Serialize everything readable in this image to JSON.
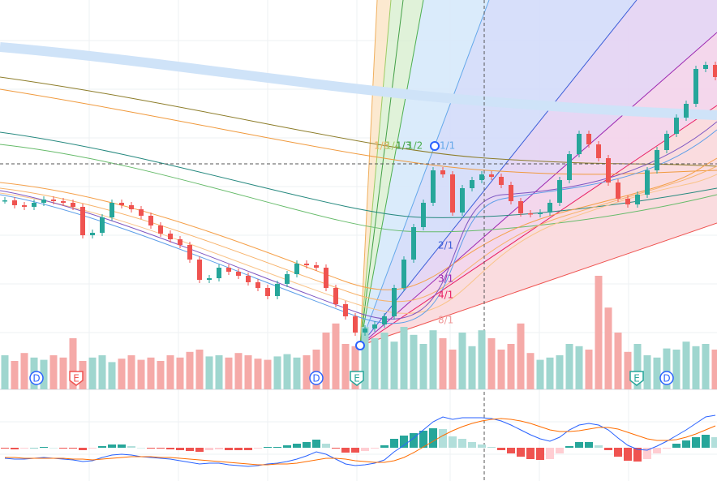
{
  "chart_data": {
    "type": "candlestick",
    "up_color": "#26a69a",
    "down_color": "#ef5350",
    "close": [
      353,
      347,
      345,
      350,
      354,
      352,
      350,
      345,
      310,
      313,
      332,
      350,
      347,
      342,
      334,
      322,
      312,
      305,
      298,
      280,
      255,
      257,
      270,
      265,
      260,
      252,
      245,
      235,
      250,
      262,
      275,
      273,
      270,
      245,
      225,
      210,
      190,
      195,
      200,
      210,
      245,
      280,
      320,
      350,
      390,
      385,
      338,
      368,
      378,
      385,
      382,
      372,
      352,
      337,
      336,
      338,
      350,
      378,
      410,
      435,
      422,
      405,
      375,
      355,
      348,
      360,
      390,
      415,
      435,
      455,
      472,
      515,
      520,
      505
    ],
    "ylim": [
      7,
      600
    ],
    "volume": [
      30,
      25,
      32,
      28,
      26,
      30,
      28,
      45,
      25,
      28,
      30,
      24,
      27,
      30,
      26,
      28,
      25,
      30,
      28,
      33,
      35,
      29,
      30,
      28,
      32,
      30,
      27,
      26,
      29,
      31,
      28,
      30,
      35,
      50,
      58,
      40,
      38,
      55,
      45,
      50,
      42,
      55,
      48,
      40,
      52,
      45,
      35,
      50,
      38,
      52,
      45,
      35,
      40,
      58,
      32,
      26,
      28,
      30,
      40,
      38,
      35,
      100,
      72,
      50,
      33,
      40,
      30,
      28,
      36,
      35,
      42,
      38,
      40,
      35
    ],
    "volume_lim": [
      0,
      100
    ],
    "macd": [
      -13,
      -14,
      -14,
      -13,
      -12,
      -13,
      -14,
      -15,
      -17,
      -16,
      -12,
      -9,
      -8,
      -9,
      -11,
      -12,
      -13,
      -14,
      -16,
      -18,
      -20,
      -19,
      -19,
      -21,
      -22,
      -23,
      -22,
      -20,
      -19,
      -17,
      -14,
      -10,
      -5,
      -8,
      -14,
      -20,
      -22,
      -21,
      -19,
      -15,
      -5,
      3,
      12,
      22,
      32,
      38,
      35,
      37,
      37,
      37,
      36,
      33,
      28,
      22,
      16,
      11,
      8,
      13,
      22,
      28,
      30,
      28,
      22,
      12,
      3,
      -2,
      -3,
      2,
      8,
      15,
      22,
      30,
      38,
      40
    ],
    "signal": [
      -12,
      -12,
      -13,
      -13,
      -13,
      -13,
      -13,
      -14,
      -14,
      -15,
      -14,
      -13,
      -12,
      -11,
      -11,
      -11,
      -12,
      -12,
      -13,
      -14,
      -15,
      -16,
      -17,
      -18,
      -19,
      -20,
      -21,
      -21,
      -20,
      -20,
      -19,
      -17,
      -15,
      -13,
      -13,
      -14,
      -16,
      -17,
      -18,
      -18,
      -16,
      -12,
      -6,
      1,
      8,
      15,
      21,
      26,
      30,
      33,
      35,
      36,
      35,
      33,
      30,
      26,
      22,
      20,
      20,
      21,
      23,
      25,
      25,
      23,
      19,
      15,
      11,
      9,
      9,
      10,
      13,
      17,
      22,
      27
    ],
    "histogram": [
      -1,
      -2,
      -1,
      0,
      1,
      0,
      -1,
      -1,
      -3,
      -1,
      2,
      4,
      4,
      2,
      0,
      -1,
      -1,
      -2,
      -3,
      -4,
      -5,
      -3,
      -2,
      -3,
      -3,
      -3,
      -1,
      1,
      1,
      3,
      5,
      7,
      10,
      5,
      -1,
      -6,
      -6,
      -4,
      -1,
      3,
      11,
      15,
      18,
      21,
      24,
      23,
      14,
      11,
      7,
      4,
      1,
      -3,
      -7,
      -11,
      -14,
      -15,
      -14,
      -7,
      2,
      7,
      7,
      3,
      -3,
      -11,
      -16,
      -17,
      -14,
      -7,
      -1,
      5,
      9,
      13,
      16,
      13
    ],
    "macd_lim": [
      -45,
      45
    ],
    "fan_labels": [
      "1/8",
      "1/4",
      "1/3",
      "1/2",
      "1/1",
      "2/1",
      "3/1",
      "4/1",
      "8/1"
    ],
    "events": [
      "D",
      "E",
      "D",
      "E",
      "E",
      "D"
    ]
  }
}
